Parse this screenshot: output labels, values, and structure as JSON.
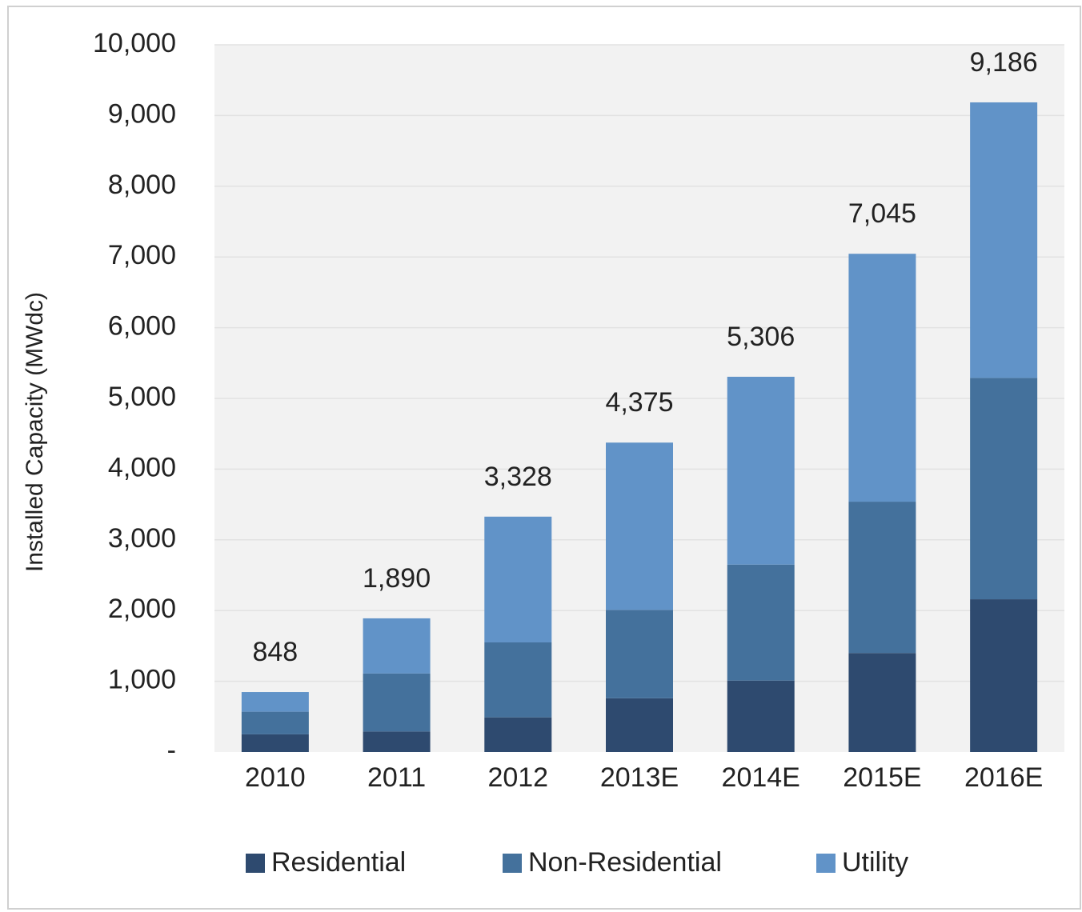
{
  "chart_data": {
    "type": "stacked_bar",
    "y_label": "Installed Capacity (MWdc)",
    "categories": [
      "2010",
      "2011",
      "2012",
      "2013E",
      "2014E",
      "2015E",
      "2016E"
    ],
    "series": [
      {
        "name": "Residential",
        "color": "#2e4a6f",
        "values": [
          250,
          290,
          490,
          760,
          1010,
          1400,
          2160
        ]
      },
      {
        "name": "Non-Residential",
        "color": "#44719c",
        "values": [
          320,
          820,
          1060,
          1250,
          1640,
          2140,
          3130
        ]
      },
      {
        "name": "Utility",
        "color": "#6193c8",
        "values": [
          278,
          780,
          1778,
          2365,
          2656,
          3505,
          3896
        ]
      }
    ],
    "totals": [
      848,
      1890,
      3328,
      4375,
      5306,
      7045,
      9186
    ],
    "total_labels": [
      "848",
      "1,890",
      "3,328",
      "4,375",
      "5,306",
      "7,045",
      "9,186"
    ],
    "ylim": [
      0,
      10000
    ],
    "yticks": [
      {
        "value": 0,
        "label": "-"
      },
      {
        "value": 1000,
        "label": "1,000"
      },
      {
        "value": 2000,
        "label": "2,000"
      },
      {
        "value": 3000,
        "label": "3,000"
      },
      {
        "value": 4000,
        "label": "4,000"
      },
      {
        "value": 5000,
        "label": "5,000"
      },
      {
        "value": 6000,
        "label": "6,000"
      },
      {
        "value": 7000,
        "label": "7,000"
      },
      {
        "value": 8000,
        "label": "8,000"
      },
      {
        "value": 9000,
        "label": "9,000"
      },
      {
        "value": 10000,
        "label": "10,000"
      }
    ],
    "grid": true
  }
}
